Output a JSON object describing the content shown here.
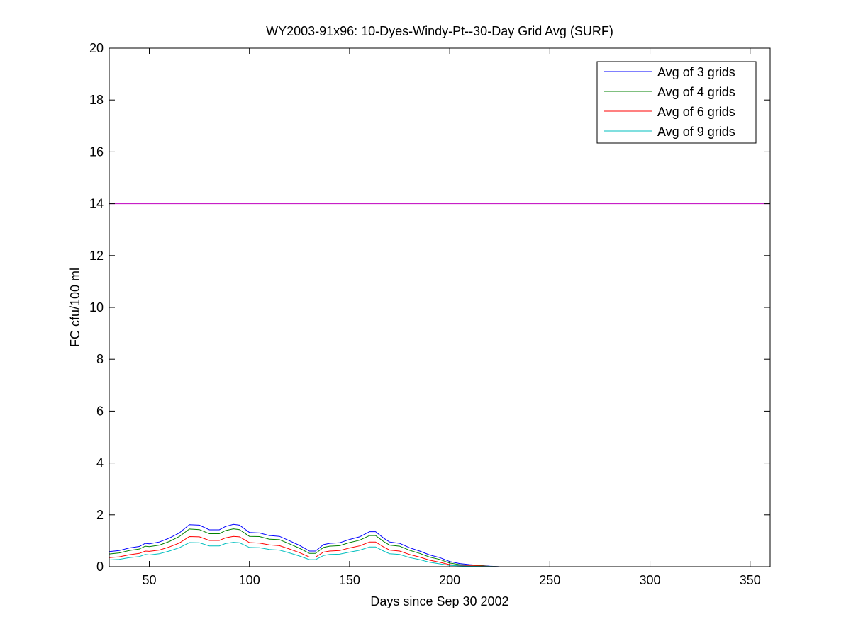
{
  "chart_data": {
    "type": "line",
    "title": "WY2003-91x96: 10-Dyes-Windy-Pt--30-Day Grid Avg (SURF)",
    "xlabel": "Days since Sep 30 2002",
    "ylabel": "FC cfu/100 ml",
    "xlim": [
      30,
      360
    ],
    "ylim": [
      0,
      20
    ],
    "xticks": [
      50,
      100,
      150,
      200,
      250,
      300,
      350
    ],
    "yticks": [
      0,
      2,
      4,
      6,
      8,
      10,
      12,
      14,
      16,
      18,
      20
    ],
    "grid": false,
    "legend_position": "top-right",
    "reference_line": {
      "y": 14,
      "color": "#bf00bf"
    },
    "x": [
      30,
      35,
      40,
      45,
      48,
      50,
      55,
      60,
      65,
      70,
      75,
      80,
      85,
      88,
      92,
      95,
      100,
      105,
      110,
      115,
      120,
      125,
      130,
      133,
      137,
      140,
      145,
      150,
      155,
      160,
      163,
      167,
      170,
      175,
      180,
      185,
      190,
      195,
      200,
      205,
      210,
      215,
      220,
      225,
      230
    ],
    "series": [
      {
        "name": "Avg of 3 grids",
        "color": "#0000ff",
        "values": [
          0.58,
          0.62,
          0.72,
          0.78,
          0.9,
          0.88,
          0.95,
          1.1,
          1.3,
          1.62,
          1.6,
          1.42,
          1.42,
          1.55,
          1.63,
          1.6,
          1.32,
          1.3,
          1.2,
          1.17,
          1.0,
          0.82,
          0.6,
          0.6,
          0.85,
          0.9,
          0.92,
          1.05,
          1.15,
          1.35,
          1.35,
          1.1,
          0.95,
          0.9,
          0.73,
          0.6,
          0.45,
          0.35,
          0.2,
          0.12,
          0.08,
          0.05,
          0.02,
          0,
          0
        ]
      },
      {
        "name": "Avg of 4 grids",
        "color": "#008000",
        "values": [
          0.49,
          0.53,
          0.62,
          0.68,
          0.79,
          0.77,
          0.83,
          0.97,
          1.16,
          1.45,
          1.43,
          1.27,
          1.27,
          1.39,
          1.46,
          1.43,
          1.17,
          1.16,
          1.06,
          1.04,
          0.88,
          0.71,
          0.51,
          0.51,
          0.74,
          0.79,
          0.81,
          0.93,
          1.02,
          1.2,
          1.2,
          0.97,
          0.83,
          0.79,
          0.63,
          0.51,
          0.37,
          0.28,
          0.14,
          0.08,
          0.06,
          0.05,
          0.01,
          0,
          0
        ]
      },
      {
        "name": "Avg of 6 grids",
        "color": "#ff0000",
        "values": [
          0.35,
          0.38,
          0.46,
          0.51,
          0.6,
          0.59,
          0.64,
          0.76,
          0.91,
          1.16,
          1.15,
          1.01,
          1.01,
          1.11,
          1.17,
          1.15,
          0.93,
          0.91,
          0.84,
          0.81,
          0.68,
          0.54,
          0.37,
          0.37,
          0.56,
          0.6,
          0.62,
          0.72,
          0.8,
          0.95,
          0.95,
          0.76,
          0.64,
          0.6,
          0.47,
          0.37,
          0.25,
          0.17,
          0.08,
          0.05,
          0.04,
          0.03,
          0.01,
          0,
          0
        ]
      },
      {
        "name": "Avg of 9 grids",
        "color": "#00bfbf",
        "values": [
          0.26,
          0.28,
          0.35,
          0.39,
          0.47,
          0.45,
          0.5,
          0.6,
          0.73,
          0.93,
          0.92,
          0.8,
          0.8,
          0.89,
          0.94,
          0.92,
          0.74,
          0.73,
          0.66,
          0.64,
          0.53,
          0.41,
          0.27,
          0.27,
          0.43,
          0.47,
          0.48,
          0.56,
          0.63,
          0.76,
          0.76,
          0.6,
          0.5,
          0.47,
          0.35,
          0.27,
          0.17,
          0.11,
          0.05,
          0.03,
          0.02,
          0.01,
          0.01,
          0,
          0
        ]
      }
    ]
  }
}
